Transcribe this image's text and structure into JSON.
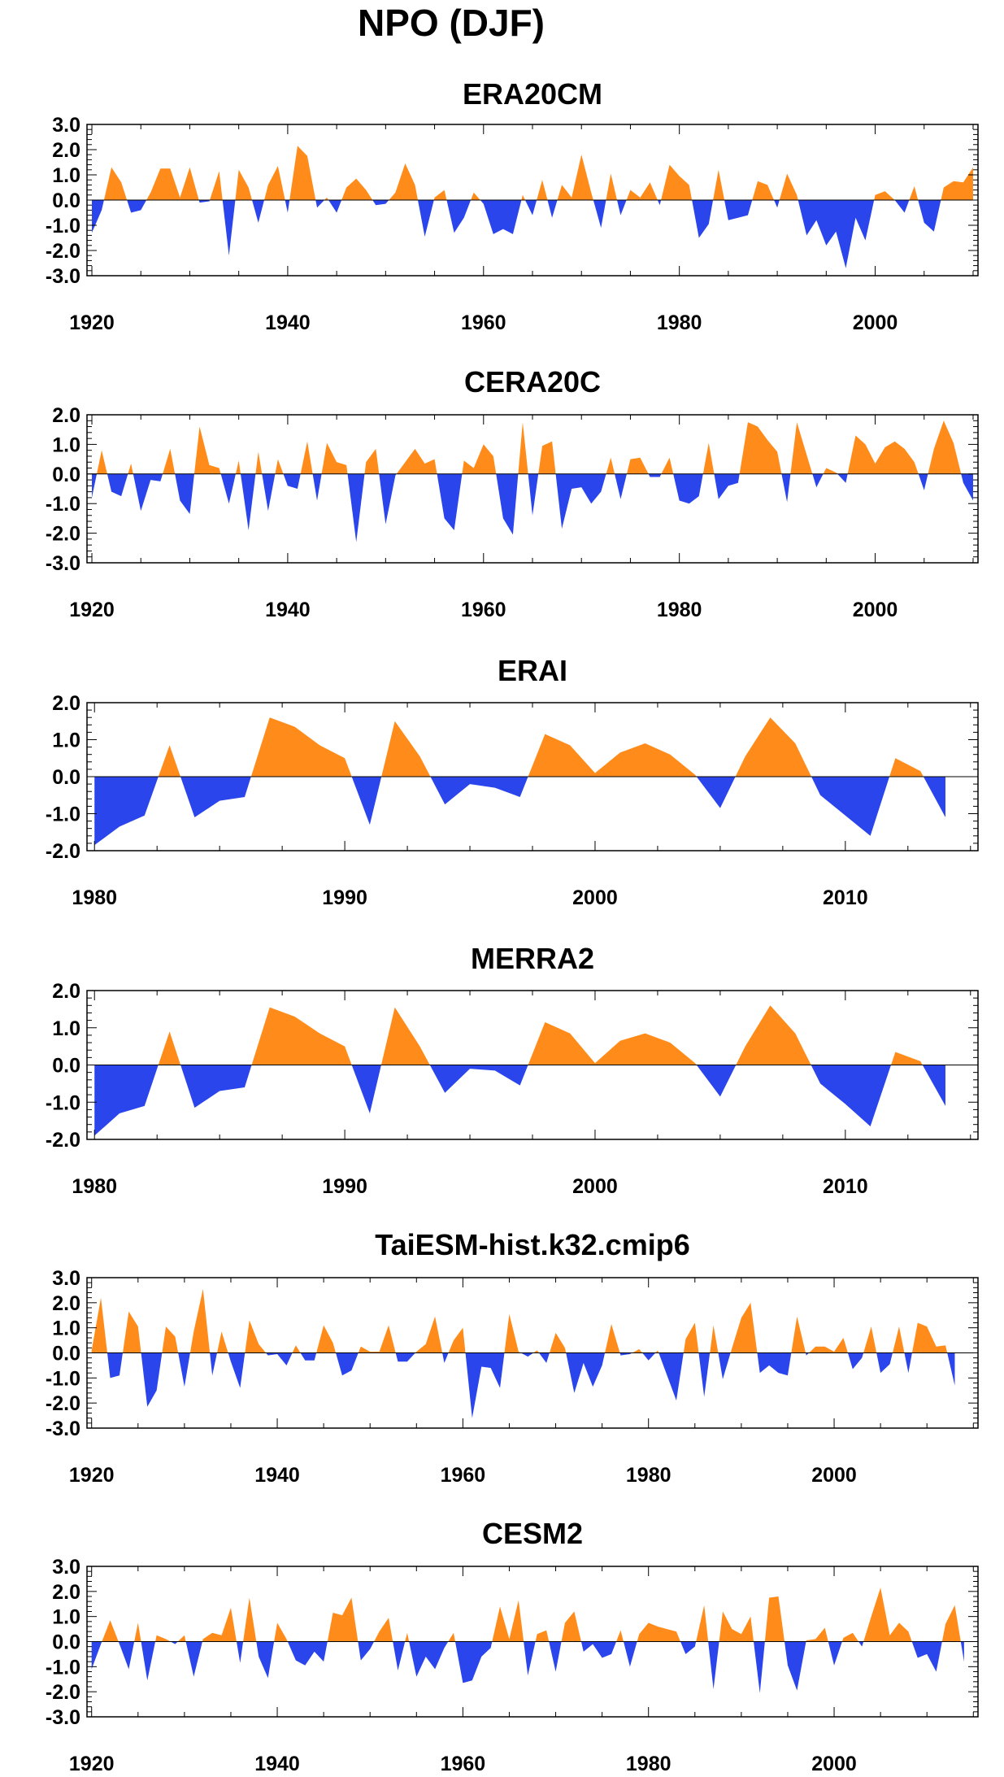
{
  "figure_title": "NPO (DJF)",
  "colors": {
    "positive": "#ff8c1a",
    "negative": "#2b45ec",
    "frame": "#000000",
    "zero_line": "#000000"
  },
  "chart_data": [
    {
      "type": "area",
      "title": "ERA20CM",
      "xlim": [
        1919.5,
        2010.5
      ],
      "ylim": [
        -3.0,
        3.0
      ],
      "yticks": [
        -3.0,
        -2.0,
        -1.0,
        0.0,
        1.0,
        2.0,
        3.0
      ],
      "ytick_labels": [
        "-3.0",
        "-2.0",
        "-1.0",
        "0.0",
        "1.0",
        "2.0",
        "3.0"
      ],
      "xticks": [
        1920,
        1940,
        1960,
        1980,
        2000
      ],
      "xtick_labels": [
        "1920",
        "1940",
        "1960",
        "1980",
        "2000"
      ],
      "x_start": 1920,
      "values": [
        -1.3,
        -0.4,
        1.3,
        0.7,
        -0.5,
        -0.4,
        0.3,
        1.25,
        1.25,
        0.1,
        1.3,
        -0.1,
        -0.05,
        1.15,
        -2.2,
        1.2,
        0.5,
        -0.9,
        0.6,
        1.35,
        -0.5,
        2.15,
        1.75,
        -0.3,
        0.1,
        -0.5,
        0.5,
        0.85,
        0.4,
        -0.2,
        -0.15,
        0.3,
        1.45,
        0.6,
        -1.45,
        0.1,
        0.4,
        -1.3,
        -0.7,
        0.3,
        -0.15,
        -1.35,
        -1.15,
        -1.35,
        0.2,
        -0.6,
        0.8,
        -0.7,
        0.6,
        0.1,
        1.8,
        0.3,
        -1.1,
        1.05,
        -0.6,
        0.4,
        0.1,
        0.7,
        -0.2,
        1.4,
        0.95,
        0.6,
        -1.5,
        -0.95,
        1.2,
        -0.8,
        -0.7,
        -0.6,
        0.75,
        0.6,
        -0.3,
        1.05,
        0.2,
        -1.4,
        -0.8,
        -1.8,
        -1.25,
        -2.7,
        -0.7,
        -1.6,
        0.2,
        0.35,
        0.0,
        -0.5,
        0.55,
        -0.9,
        -1.25,
        0.5,
        0.75,
        0.7,
        1.3
      ]
    },
    {
      "type": "area",
      "title": "CERA20C",
      "xlim": [
        1919.5,
        2010.5
      ],
      "ylim": [
        -3.0,
        2.0
      ],
      "yticks": [
        -3.0,
        -2.0,
        -1.0,
        0.0,
        1.0,
        2.0
      ],
      "ytick_labels": [
        "-3.0",
        "-2.0",
        "-1.0",
        "0.0",
        "1.0",
        "2.0"
      ],
      "xticks": [
        1920,
        1940,
        1960,
        1980,
        2000
      ],
      "xtick_labels": [
        "1920",
        "1940",
        "1960",
        "1980",
        "2000"
      ],
      "x_start": 1920,
      "values": [
        -0.8,
        0.8,
        -0.6,
        -0.75,
        0.35,
        -1.25,
        -0.2,
        -0.25,
        0.85,
        -0.9,
        -1.35,
        1.6,
        0.3,
        0.2,
        -1.0,
        0.45,
        -1.9,
        0.75,
        -1.25,
        0.5,
        -0.4,
        -0.5,
        1.1,
        -0.9,
        1.05,
        0.4,
        0.3,
        -2.3,
        0.4,
        0.85,
        -1.7,
        -0.05,
        0.4,
        0.85,
        0.35,
        0.5,
        -1.5,
        -1.9,
        0.45,
        0.2,
        1.0,
        0.6,
        -1.5,
        -2.05,
        1.75,
        -1.4,
        0.95,
        1.1,
        -1.85,
        -0.5,
        -0.45,
        -1.0,
        -0.6,
        0.55,
        -0.85,
        0.5,
        0.55,
        -0.1,
        -0.1,
        0.55,
        -0.9,
        -1.0,
        -0.75,
        1.05,
        -0.85,
        -0.4,
        -0.3,
        1.75,
        1.6,
        1.15,
        0.75,
        -0.95,
        1.75,
        0.65,
        -0.45,
        0.2,
        0.05,
        -0.3,
        1.3,
        1.0,
        0.35,
        0.9,
        1.1,
        0.85,
        0.4,
        -0.55,
        0.85,
        1.8,
        1.05,
        -0.3,
        -0.9
      ]
    },
    {
      "type": "area",
      "title": "ERAI",
      "xlim": [
        1979.7,
        2015.3
      ],
      "ylim": [
        -2.0,
        2.0
      ],
      "yticks": [
        -2.0,
        -1.0,
        0.0,
        1.0,
        2.0
      ],
      "ytick_labels": [
        "-2.0",
        "-1.0",
        "0.0",
        "1.0",
        "2.0"
      ],
      "xticks": [
        1980,
        1990,
        2000,
        2010
      ],
      "xtick_labels": [
        "1980",
        "1990",
        "2000",
        "2010"
      ],
      "x_start": 1980,
      "values": [
        -1.85,
        -1.35,
        -1.05,
        0.85,
        -1.1,
        -0.65,
        -0.55,
        1.6,
        1.35,
        0.85,
        0.5,
        -1.3,
        1.5,
        0.55,
        -0.75,
        -0.2,
        -0.3,
        -0.55,
        1.15,
        0.85,
        0.1,
        0.65,
        0.9,
        0.6,
        0.05,
        -0.85,
        0.55,
        1.6,
        0.9,
        -0.5,
        -1.05,
        -1.6,
        0.5,
        0.15,
        -1.1
      ]
    },
    {
      "type": "area",
      "title": "MERRA2",
      "xlim": [
        1979.7,
        2015.3
      ],
      "ylim": [
        -2.0,
        2.0
      ],
      "yticks": [
        -2.0,
        -1.0,
        0.0,
        1.0,
        2.0
      ],
      "ytick_labels": [
        "-2.0",
        "-1.0",
        "0.0",
        "1.0",
        "2.0"
      ],
      "xticks": [
        1980,
        1990,
        2000,
        2010
      ],
      "xtick_labels": [
        "1980",
        "1990",
        "2000",
        "2010"
      ],
      "x_start": 1980,
      "values": [
        -1.9,
        -1.3,
        -1.1,
        0.9,
        -1.15,
        -0.7,
        -0.6,
        1.55,
        1.3,
        0.85,
        0.5,
        -1.3,
        1.55,
        0.5,
        -0.75,
        -0.1,
        -0.15,
        -0.55,
        1.15,
        0.85,
        0.05,
        0.65,
        0.85,
        0.6,
        0.05,
        -0.85,
        0.5,
        1.6,
        0.85,
        -0.5,
        -1.05,
        -1.65,
        0.35,
        0.1,
        -1.1
      ]
    },
    {
      "type": "area",
      "title": "TaiESM-hist.k32.cmip6",
      "xlim": [
        1919.5,
        2015.5
      ],
      "ylim": [
        -3.0,
        3.0
      ],
      "yticks": [
        -3.0,
        -2.0,
        -1.0,
        0.0,
        1.0,
        2.0,
        3.0
      ],
      "ytick_labels": [
        "-3.0",
        "-2.0",
        "-1.0",
        "0.0",
        "1.0",
        "2.0",
        "3.0"
      ],
      "xticks": [
        1920,
        1940,
        1960,
        1980,
        2000
      ],
      "xtick_labels": [
        "1920",
        "1940",
        "1960",
        "1980",
        "2000"
      ],
      "x_start": 1920,
      "values": [
        0.1,
        2.2,
        -1.0,
        -0.9,
        1.65,
        1.05,
        -2.15,
        -1.5,
        1.05,
        0.65,
        -1.35,
        0.85,
        2.55,
        -0.9,
        0.85,
        -0.35,
        -1.4,
        1.3,
        0.35,
        -0.1,
        -0.05,
        -0.5,
        0.3,
        -0.3,
        -0.3,
        1.1,
        0.4,
        -0.9,
        -0.7,
        0.25,
        0.05,
        0.05,
        1.1,
        -0.35,
        -0.35,
        0.05,
        0.35,
        1.45,
        -0.4,
        0.5,
        1.0,
        -2.6,
        -0.55,
        -0.6,
        -1.4,
        1.55,
        0.05,
        -0.15,
        0.1,
        -0.4,
        0.8,
        0.2,
        -1.6,
        -0.4,
        -1.35,
        -0.5,
        1.15,
        -0.1,
        -0.05,
        0.15,
        -0.3,
        0.1,
        -0.9,
        -1.9,
        0.55,
        1.2,
        -1.75,
        1.1,
        -1.05,
        0.2,
        1.4,
        2.0,
        -0.8,
        -0.5,
        -0.8,
        -0.9,
        1.45,
        -0.1,
        0.25,
        0.25,
        0.05,
        0.6,
        -0.65,
        -0.2,
        1.05,
        -0.8,
        -0.45,
        1.05,
        -0.8,
        1.2,
        1.05,
        0.25,
        0.3,
        -1.3
      ]
    },
    {
      "type": "area",
      "title": "CESM2",
      "xlim": [
        1919.5,
        2015.5
      ],
      "ylim": [
        -3.0,
        3.0
      ],
      "yticks": [
        -3.0,
        -2.0,
        -1.0,
        0.0,
        1.0,
        2.0,
        3.0
      ],
      "ytick_labels": [
        "-3.0",
        "-2.0",
        "-1.0",
        "0.0",
        "1.0",
        "2.0",
        "3.0"
      ],
      "xticks": [
        1920,
        1940,
        1960,
        1980,
        2000
      ],
      "xtick_labels": [
        "1920",
        "1940",
        "1960",
        "1980",
        "2000"
      ],
      "x_start": 1920,
      "values": [
        -1.1,
        -0.1,
        0.85,
        -0.1,
        -1.1,
        0.75,
        -1.55,
        0.25,
        0.1,
        -0.1,
        0.25,
        -1.4,
        0.1,
        0.35,
        0.25,
        1.35,
        -0.85,
        1.75,
        -0.6,
        -1.45,
        0.75,
        0.1,
        -0.75,
        -0.95,
        -0.4,
        -0.8,
        1.15,
        1.05,
        1.75,
        -0.75,
        -0.3,
        0.4,
        0.95,
        -1.15,
        0.35,
        -1.4,
        -0.6,
        -1.1,
        -0.25,
        0.35,
        -1.65,
        -1.55,
        -0.6,
        -0.25,
        1.4,
        0.1,
        1.65,
        -1.35,
        0.3,
        0.45,
        -1.2,
        0.75,
        1.2,
        -0.4,
        -0.1,
        -0.65,
        -0.5,
        0.45,
        -1.0,
        0.3,
        0.75,
        0.6,
        0.5,
        0.4,
        -0.5,
        -0.2,
        1.45,
        -1.9,
        1.2,
        0.5,
        0.3,
        1.0,
        -2.05,
        1.75,
        1.8,
        -0.95,
        -1.95,
        0.05,
        0.1,
        0.55,
        -0.95,
        0.15,
        0.35,
        -0.2,
        1.0,
        2.15,
        0.25,
        0.75,
        0.4,
        -0.65,
        -0.5,
        -1.2,
        0.7,
        1.45,
        -0.8
      ]
    }
  ]
}
